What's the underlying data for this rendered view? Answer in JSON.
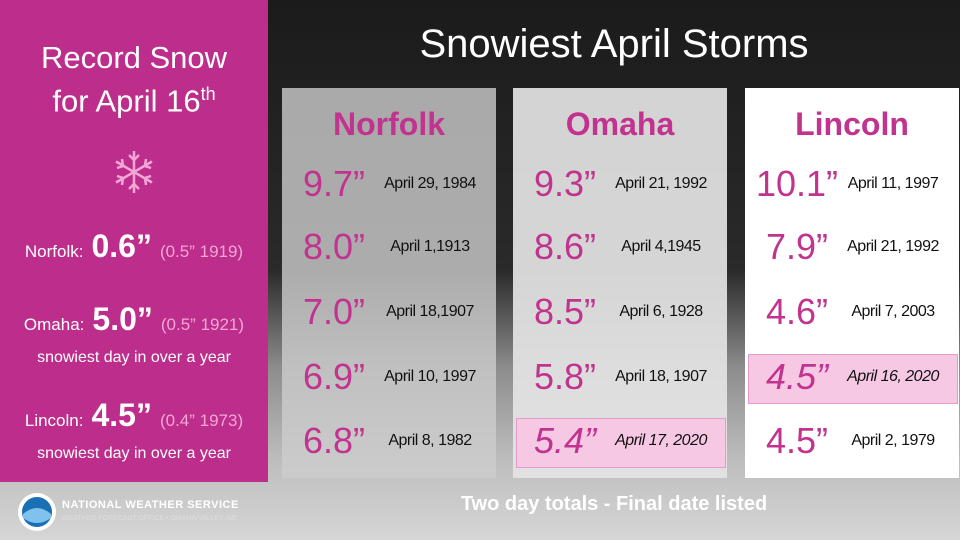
{
  "sidebar": {
    "title_line1": "Record Snow",
    "title_line2": "for April 16",
    "title_sup": "th",
    "records": [
      {
        "city": "Norfolk:",
        "amount": "0.6”",
        "previous": "(0.5” 1919)"
      },
      {
        "city": "Omaha:",
        "amount": "5.0”",
        "previous": "(0.5” 1921)",
        "note": "snowiest day in over a year"
      },
      {
        "city": "Lincoln:",
        "amount": "4.5”",
        "previous": "(0.4” 1973)",
        "note": "snowiest day in over a year"
      }
    ]
  },
  "title": "Snowiest April Storms",
  "columns": [
    {
      "city": "Norfolk",
      "entries": [
        {
          "amount": "9.7”",
          "date": "April 29, 1984"
        },
        {
          "amount": "8.0”",
          "date": "April 1,1913"
        },
        {
          "amount": "7.0”",
          "date": "April 18,1907"
        },
        {
          "amount": "6.9”",
          "date": "April 10, 1997"
        },
        {
          "amount": "6.8”",
          "date": "April 8, 1982"
        }
      ]
    },
    {
      "city": "Omaha",
      "entries": [
        {
          "amount": "9.3”",
          "date": "April 21, 1992"
        },
        {
          "amount": "8.6”",
          "date": "April 4,1945"
        },
        {
          "amount": "8.5”",
          "date": "April 6, 1928"
        },
        {
          "amount": "5.8”",
          "date": "April 18, 1907"
        },
        {
          "amount": "5.4”",
          "date": "April 17, 2020",
          "highlight": true
        }
      ]
    },
    {
      "city": "Lincoln",
      "entries": [
        {
          "amount": "10.1”",
          "date": "April 11, 1997"
        },
        {
          "amount": "7.9”",
          "date": "April 21, 1992"
        },
        {
          "amount": "4.6”",
          "date": "April 7, 2003"
        },
        {
          "amount": "4.5”",
          "date": "April 16, 2020",
          "highlight": true
        },
        {
          "amount": "4.5”",
          "date": "April 2, 1979"
        }
      ]
    }
  ],
  "footer": "Two day totals - Final date listed",
  "agency": {
    "name": "NATIONAL WEATHER SERVICE",
    "office": "WEATHER FORECAST OFFICE • OMAHA/VALLEY, NE"
  }
}
